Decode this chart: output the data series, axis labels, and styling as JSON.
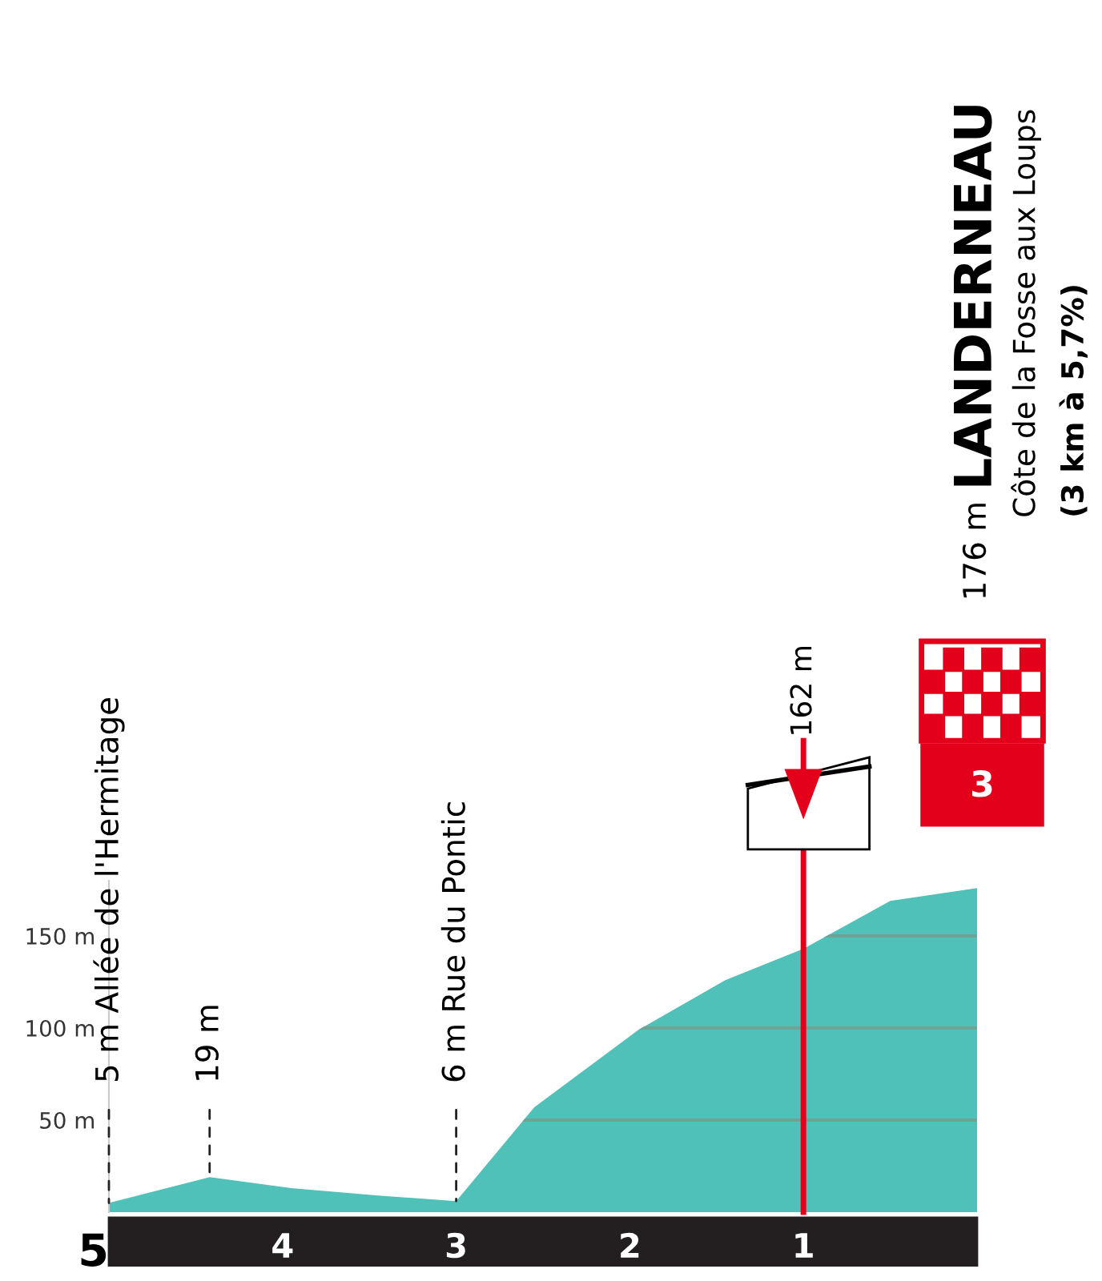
{
  "chart_data": {
    "type": "area",
    "x": [
      5,
      4.42,
      3.95,
      3.45,
      3.0,
      2.55,
      1.95,
      1.45,
      1.0,
      0.5,
      0
    ],
    "series": [
      {
        "color": "#4fc1b8",
        "values": [
          5,
          19,
          13,
          9,
          6,
          57,
          99,
          126,
          143,
          169,
          176
        ]
      }
    ],
    "xlim": [
      5,
      0
    ],
    "xticks": [
      5,
      4,
      3,
      2,
      1
    ],
    "ylim": [
      0,
      180
    ],
    "yticks": [
      {
        "value": 50,
        "label": "50 m"
      },
      {
        "value": 100,
        "label": "100 m"
      },
      {
        "value": 150,
        "label": "150 m"
      }
    ],
    "grid": "y",
    "ref_lines": [
      {
        "axis": "x",
        "value": 1,
        "label": "162 m",
        "color": "#e3001b"
      }
    ],
    "annotations": [
      {
        "text": "5 m Allée de l'Hermitage",
        "x": 5,
        "y": 5
      },
      {
        "text": "19 m",
        "x": 4.42,
        "y": 19
      },
      {
        "text": "6 m Rue du Pontic",
        "x": 3.0,
        "y": 6
      },
      "176 m",
      "LANDERNEAU",
      "Côte de la Fosse aux Loups",
      "(3 km à 5,7%)",
      "3"
    ]
  }
}
